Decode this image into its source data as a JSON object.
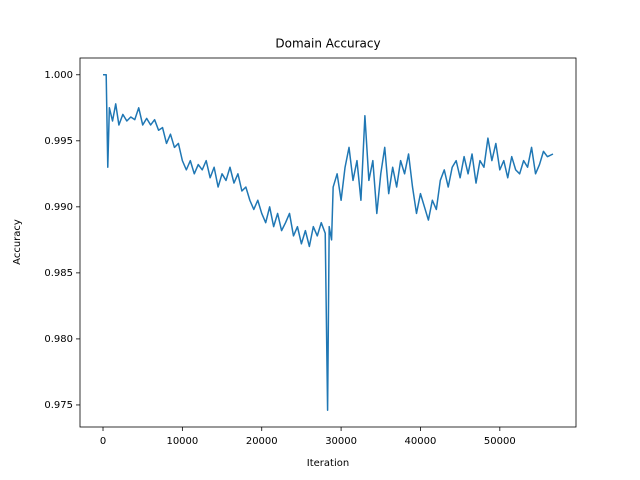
{
  "chart_data": {
    "type": "line",
    "title": "Domain Accuracy",
    "x_label": "Iteration",
    "y_label": "Accuracy",
    "xlim": [
      -2900,
      59600
    ],
    "ylim": [
      0.97333,
      1.00127
    ],
    "xticks": [
      0,
      10000,
      20000,
      30000,
      40000,
      50000
    ],
    "yticks": [
      0.975,
      {
        "value": 0.98,
        "label": "0.980"
      },
      0.985,
      {
        "value": 0.99,
        "label": "0.990"
      },
      0.995,
      {
        "value": 1,
        "label": "1.000"
      }
    ],
    "grid": false,
    "series": [
      {
        "color": "#1f77b4",
        "x": [
          0,
          400,
          600,
          800,
          1200,
          1600,
          2000,
          2500,
          3000,
          3500,
          4000,
          4500,
          5000,
          5500,
          6000,
          6500,
          7000,
          7500,
          8000,
          8500,
          9000,
          9500,
          10000,
          10500,
          11000,
          11500,
          12000,
          12500,
          13000,
          13500,
          14000,
          14500,
          15000,
          15500,
          16000,
          16500,
          17000,
          17500,
          18000,
          18500,
          19000,
          19500,
          20000,
          20500,
          21000,
          21500,
          22000,
          22500,
          23000,
          23500,
          24000,
          24500,
          25000,
          25500,
          26000,
          26500,
          27000,
          27500,
          28000,
          28300,
          28500,
          28800,
          29000,
          29500,
          30000,
          30500,
          31000,
          31500,
          32000,
          32500,
          33000,
          33500,
          34000,
          34500,
          35000,
          35500,
          36000,
          36500,
          37000,
          37500,
          38000,
          38500,
          39000,
          39500,
          40000,
          40500,
          41000,
          41500,
          42000,
          42500,
          43000,
          43500,
          44000,
          44500,
          45000,
          45500,
          46000,
          46500,
          47000,
          47500,
          48000,
          48500,
          49000,
          49500,
          50000,
          50500,
          51000,
          51500,
          52000,
          52500,
          53000,
          53500,
          54000,
          54500,
          55000,
          55500,
          56000,
          56700
        ],
        "values": [
          1.0,
          1.0,
          0.993,
          0.9975,
          0.9965,
          0.9978,
          0.9962,
          0.997,
          0.9965,
          0.9968,
          0.9966,
          0.9975,
          0.9962,
          0.9967,
          0.9962,
          0.9966,
          0.9958,
          0.996,
          0.9948,
          0.9955,
          0.9945,
          0.9948,
          0.9935,
          0.9928,
          0.9935,
          0.9925,
          0.9932,
          0.9928,
          0.9935,
          0.9922,
          0.993,
          0.9915,
          0.9925,
          0.992,
          0.993,
          0.9918,
          0.9925,
          0.9912,
          0.9915,
          0.9905,
          0.9898,
          0.9905,
          0.9895,
          0.9888,
          0.99,
          0.9885,
          0.9895,
          0.9882,
          0.9888,
          0.9895,
          0.9878,
          0.9885,
          0.9872,
          0.9882,
          0.987,
          0.9885,
          0.9878,
          0.9888,
          0.988,
          0.9746,
          0.9885,
          0.9875,
          0.9915,
          0.9925,
          0.9905,
          0.993,
          0.9945,
          0.992,
          0.9935,
          0.9905,
          0.9969,
          0.992,
          0.9935,
          0.9895,
          0.9925,
          0.9945,
          0.991,
          0.993,
          0.9915,
          0.9935,
          0.9925,
          0.994,
          0.9915,
          0.9895,
          0.991,
          0.99,
          0.989,
          0.9905,
          0.9898,
          0.992,
          0.9928,
          0.9915,
          0.993,
          0.9935,
          0.9922,
          0.9938,
          0.9925,
          0.994,
          0.9918,
          0.9935,
          0.993,
          0.9952,
          0.9935,
          0.9948,
          0.9928,
          0.9935,
          0.9922,
          0.9938,
          0.9928,
          0.9925,
          0.9935,
          0.993,
          0.9945,
          0.9925,
          0.9932,
          0.9942,
          0.9938,
          0.994
        ]
      }
    ]
  }
}
